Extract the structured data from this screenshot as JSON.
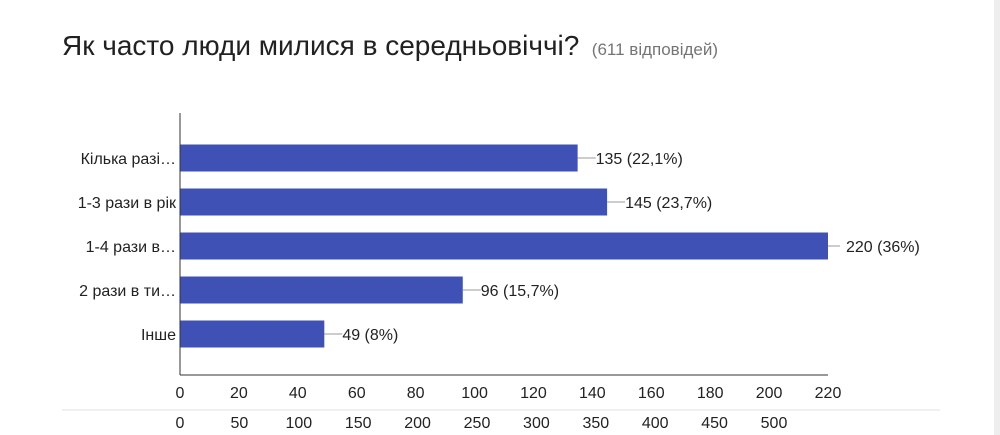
{
  "header": {
    "title": "Як часто люди милися в середньовіччі?",
    "subtitle": "(611 відповідей)"
  },
  "chart_data": {
    "type": "bar",
    "orientation": "horizontal",
    "categories": [
      "Кількa разі…",
      "1-3 рази в рік",
      "1-4 рази в…",
      "2 рази в ти…",
      "Інше"
    ],
    "values": [
      135,
      145,
      220,
      96,
      49
    ],
    "data_labels": [
      "135 (22,1%)",
      "145 (23,7%)",
      "220 (36%)",
      "96 (15,7%)",
      "49 (8%)"
    ],
    "xlim": [
      0,
      220
    ],
    "xticks": [
      0,
      20,
      40,
      60,
      80,
      100,
      120,
      140,
      160,
      180,
      200,
      220
    ],
    "secondary_ticks": [
      0,
      50,
      100,
      150,
      200,
      250,
      300,
      350,
      400,
      450,
      500
    ],
    "bar_color": "#3f51b5",
    "grid": false,
    "legend": "none"
  }
}
